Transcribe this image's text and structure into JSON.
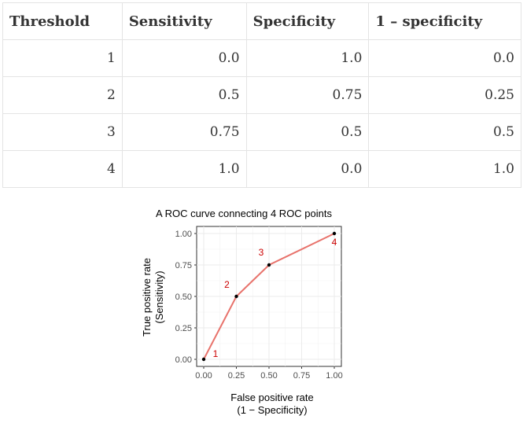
{
  "table": {
    "headers": [
      "Threshold",
      "Sensitivity",
      "Specificity",
      "1 – specificity"
    ],
    "rows": [
      [
        "1",
        "0.0",
        "1.0",
        "0.0"
      ],
      [
        "2",
        "0.5",
        "0.75",
        "0.25"
      ],
      [
        "3",
        "0.75",
        "0.5",
        "0.5"
      ],
      [
        "4",
        "1.0",
        "0.0",
        "1.0"
      ]
    ]
  },
  "chart_data": {
    "type": "line",
    "title": "A ROC curve connecting 4 ROC points",
    "xlabel": [
      "False positive rate",
      "(1 − Specificity)"
    ],
    "ylabel": [
      "True positive rate",
      "(Sensitivity)"
    ],
    "xlim": [
      0,
      1
    ],
    "ylim": [
      0,
      1
    ],
    "x_ticks": [
      "0.00",
      "0.25",
      "0.50",
      "0.75",
      "1.00"
    ],
    "y_ticks": [
      "0.00",
      "0.25",
      "0.50",
      "0.75",
      "1.00"
    ],
    "grid": true,
    "line_color": "#e8736c",
    "point_color": "#000000",
    "label_color": "#cc0000",
    "points": [
      {
        "x": 0.0,
        "y": 0.0,
        "label": "1"
      },
      {
        "x": 0.25,
        "y": 0.5,
        "label": "2"
      },
      {
        "x": 0.5,
        "y": 0.75,
        "label": "3"
      },
      {
        "x": 1.0,
        "y": 1.0,
        "label": "4"
      }
    ]
  }
}
